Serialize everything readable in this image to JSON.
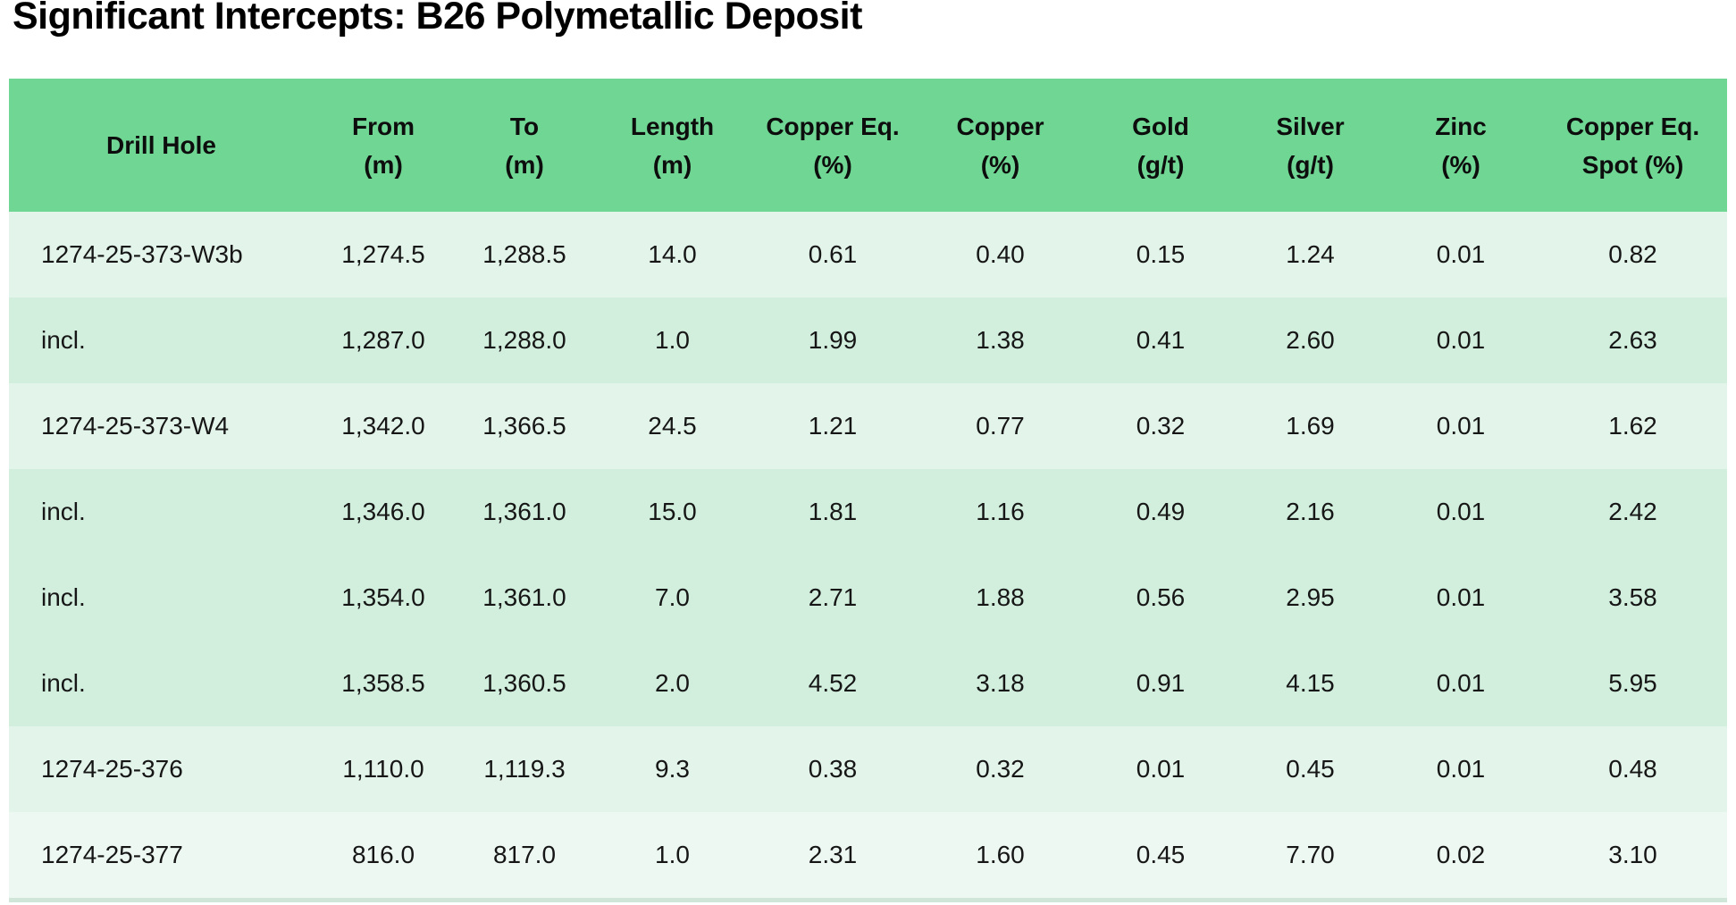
{
  "page": {
    "title": "Significant Intercepts: B26 Polymetallic Deposit"
  },
  "colors": {
    "header_bg": "#6fd694",
    "row_light": "#e3f4ea",
    "row_medium": "#d2efde",
    "row_lightest": "#edf8f2",
    "bottom_strip": "#cfe6d8",
    "title_text": "#000000",
    "body_text": "#161616",
    "page_bg": "#ffffff"
  },
  "table": {
    "header": [
      {
        "line1": "Drill Hole",
        "line2": ""
      },
      {
        "line1": "From",
        "line2": "(m)"
      },
      {
        "line1": "To",
        "line2": "(m)"
      },
      {
        "line1": "Length",
        "line2": "(m)"
      },
      {
        "line1": "Copper Eq.",
        "line2": "(%)"
      },
      {
        "line1": "Copper",
        "line2": "(%)"
      },
      {
        "line1": "Gold",
        "line2": "(g/t)"
      },
      {
        "line1": "Silver",
        "line2": "(g/t)"
      },
      {
        "line1": "Zinc",
        "line2": "(%)"
      },
      {
        "line1": "Copper Eq.",
        "line2": "Spot (%)"
      }
    ],
    "rows": [
      {
        "shade": "row_light",
        "cells": [
          "1274-25-373-W3b",
          "1,274.5",
          "1,288.5",
          "14.0",
          "0.61",
          "0.40",
          "0.15",
          "1.24",
          "0.01",
          "0.82"
        ]
      },
      {
        "shade": "row_medium",
        "cells": [
          "incl.",
          "1,287.0",
          "1,288.0",
          "1.0",
          "1.99",
          "1.38",
          "0.41",
          "2.60",
          "0.01",
          "2.63"
        ]
      },
      {
        "shade": "row_light",
        "cells": [
          "1274-25-373-W4",
          "1,342.0",
          "1,366.5",
          "24.5",
          "1.21",
          "0.77",
          "0.32",
          "1.69",
          "0.01",
          "1.62"
        ]
      },
      {
        "shade": "row_medium",
        "cells": [
          "incl.",
          "1,346.0",
          "1,361.0",
          "15.0",
          "1.81",
          "1.16",
          "0.49",
          "2.16",
          "0.01",
          "2.42"
        ]
      },
      {
        "shade": "row_medium",
        "cells": [
          "incl.",
          "1,354.0",
          "1,361.0",
          "7.0",
          "2.71",
          "1.88",
          "0.56",
          "2.95",
          "0.01",
          "3.58"
        ]
      },
      {
        "shade": "row_medium",
        "cells": [
          "incl.",
          "1,358.5",
          "1,360.5",
          "2.0",
          "4.52",
          "3.18",
          "0.91",
          "4.15",
          "0.01",
          "5.95"
        ]
      },
      {
        "shade": "row_light",
        "cells": [
          "1274-25-376",
          "1,110.0",
          "1,119.3",
          "9.3",
          "0.38",
          "0.32",
          "0.01",
          "0.45",
          "0.01",
          "0.48"
        ]
      },
      {
        "shade": "row_lightest",
        "cells": [
          "1274-25-377",
          "816.0",
          "817.0",
          "1.0",
          "2.31",
          "1.60",
          "0.45",
          "7.70",
          "0.02",
          "3.10"
        ]
      }
    ]
  },
  "chart_data": {
    "type": "table",
    "title": "Significant Intercepts: B26 Polymetallic Deposit",
    "columns": [
      "Drill Hole",
      "From (m)",
      "To (m)",
      "Length (m)",
      "Copper Eq. (%)",
      "Copper (%)",
      "Gold (g/t)",
      "Silver (g/t)",
      "Zinc (%)",
      "Copper Eq. Spot (%)"
    ],
    "rows": [
      [
        "1274-25-373-W3b",
        1274.5,
        1288.5,
        14.0,
        0.61,
        0.4,
        0.15,
        1.24,
        0.01,
        0.82
      ],
      [
        "incl.",
        1287.0,
        1288.0,
        1.0,
        1.99,
        1.38,
        0.41,
        2.6,
        0.01,
        2.63
      ],
      [
        "1274-25-373-W4",
        1342.0,
        1366.5,
        24.5,
        1.21,
        0.77,
        0.32,
        1.69,
        0.01,
        1.62
      ],
      [
        "incl.",
        1346.0,
        1361.0,
        15.0,
        1.81,
        1.16,
        0.49,
        2.16,
        0.01,
        2.42
      ],
      [
        "incl.",
        1354.0,
        1361.0,
        7.0,
        2.71,
        1.88,
        0.56,
        2.95,
        0.01,
        3.58
      ],
      [
        "incl.",
        1358.5,
        1360.5,
        2.0,
        4.52,
        3.18,
        0.91,
        4.15,
        0.01,
        5.95
      ],
      [
        "1274-25-376",
        1110.0,
        1119.3,
        9.3,
        0.38,
        0.32,
        0.01,
        0.45,
        0.01,
        0.48
      ],
      [
        "1274-25-377",
        816.0,
        817.0,
        1.0,
        2.31,
        1.6,
        0.45,
        7.7,
        0.02,
        3.1
      ]
    ],
    "layout": {
      "header_shaded": true,
      "incl_rows_shaded_darker": true,
      "legend_position": "none",
      "grid": false
    }
  }
}
